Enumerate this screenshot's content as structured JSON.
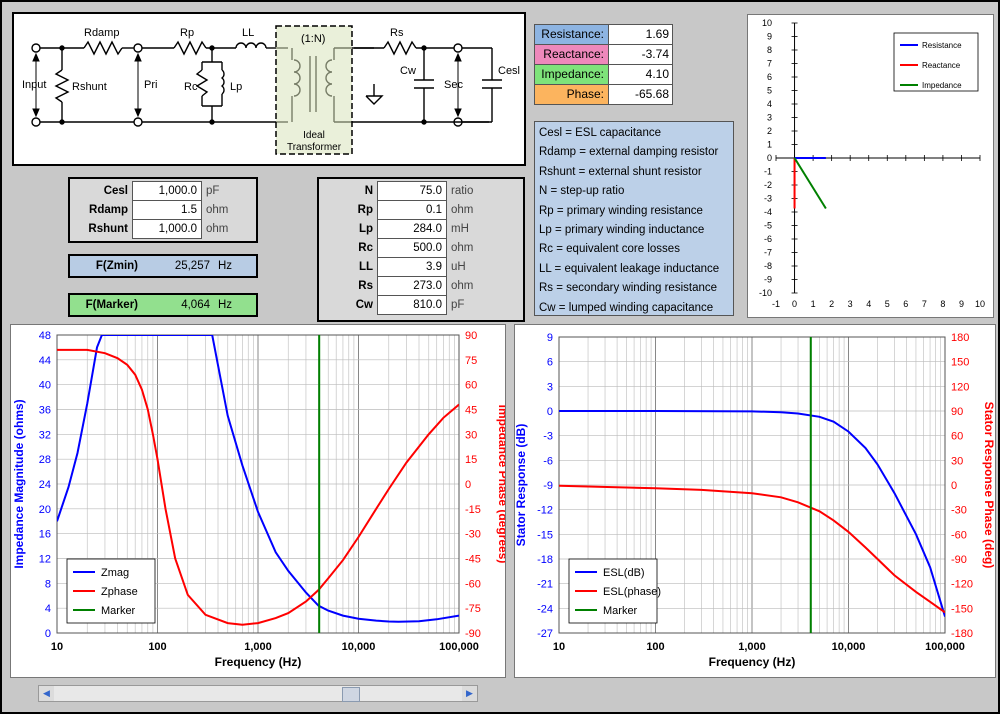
{
  "schematic": {
    "labels": {
      "rdamp": "Rdamp",
      "rp": "Rp",
      "ll": "LL",
      "ratio": "(1:N)",
      "rs": "Rs",
      "input": "Input",
      "rshunt": "Rshunt",
      "pri": "Pri",
      "rc": "Rc",
      "lp": "Lp",
      "cw": "Cw",
      "sec": "Sec",
      "cesl": "Cesl",
      "ideal1": "Ideal",
      "ideal2": "Transformer"
    }
  },
  "inputs_left": [
    {
      "label": "Cesl",
      "value": "1,000.0",
      "unit": "pF"
    },
    {
      "label": "Rdamp",
      "value": "1.5",
      "unit": "ohm"
    },
    {
      "label": "Rshunt",
      "value": "1,000.0",
      "unit": "ohm"
    }
  ],
  "inputs_right": [
    {
      "label": "N",
      "value": "75.0",
      "unit": "ratio"
    },
    {
      "label": "Rp",
      "value": "0.1",
      "unit": "ohm"
    },
    {
      "label": "Lp",
      "value": "284.0",
      "unit": "mH"
    },
    {
      "label": "Rc",
      "value": "500.0",
      "unit": "ohm"
    },
    {
      "label": "LL",
      "value": "3.9",
      "unit": "uH"
    },
    {
      "label": "Rs",
      "value": "273.0",
      "unit": "ohm"
    },
    {
      "label": "Cw",
      "value": "810.0",
      "unit": "pF"
    }
  ],
  "fzmin": {
    "label": "F(Zmin)",
    "value": "25,257",
    "unit": "Hz",
    "color": "#b8cce4"
  },
  "fmarker": {
    "label": "F(Marker)",
    "value": "4,064",
    "unit": "Hz",
    "color": "#92e08e"
  },
  "results": [
    {
      "label": "Resistance:",
      "value": "1.69",
      "color": "#8db4e2"
    },
    {
      "label": "Reactance:",
      "value": "-3.74",
      "color": "#ee88bb"
    },
    {
      "label": "Impedance:",
      "value": "4.10",
      "color": "#7ee37a"
    },
    {
      "label": "Phase:",
      "value": "-65.68",
      "color": "#fcb45e"
    }
  ],
  "definitions": [
    "Cesl = ESL capacitance",
    "Rdamp = external damping resistor",
    "Rshunt = external shunt resistor",
    "N = step-up ratio",
    "Rp = primary winding resistance",
    "Lp = primary winding inductance",
    "Rc = equivalent core losses",
    "LL = equivalent leakage inductance",
    "Rs = secondary winding resistance",
    "Cw = lumped winding capacitance"
  ],
  "chart_data": [
    {
      "type": "line",
      "title": "",
      "xlabel": "",
      "ylabel": "",
      "xlim": [
        -1,
        10
      ],
      "ylim": [
        -10,
        10
      ],
      "legend_position": "top-right",
      "series": [
        {
          "name": "Resistance",
          "color": "#0000ff",
          "x": [
            0,
            1.69
          ],
          "y": [
            0,
            0
          ]
        },
        {
          "name": "Reactance",
          "color": "#ff0000",
          "x": [
            0,
            0
          ],
          "y": [
            0,
            -3.74
          ]
        },
        {
          "name": "Impedance",
          "color": "#008000",
          "x": [
            0,
            1.69
          ],
          "y": [
            0,
            -3.74
          ]
        }
      ],
      "grid": true
    },
    {
      "type": "line",
      "title": "",
      "xlabel": "Frequency (Hz)",
      "ylabel": "Impedance Magnitude (ohms)",
      "y2label": "Impedance Phase (degrees)",
      "xscale": "log",
      "xlim": [
        10,
        100000
      ],
      "ylim": [
        0,
        48
      ],
      "y2lim": [
        -90,
        90
      ],
      "x_ticks": [
        "10",
        "100",
        "1,000",
        "10,000",
        "100,000"
      ],
      "y_ticks": [
        "0",
        "4",
        "8",
        "12",
        "16",
        "20",
        "24",
        "28",
        "32",
        "36",
        "40",
        "44",
        "48"
      ],
      "y2_ticks": [
        "-90",
        "-75",
        "-60",
        "-45",
        "-30",
        "-15",
        "0",
        "15",
        "30",
        "45",
        "60",
        "75",
        "90"
      ],
      "legend_position": "bottom-left",
      "series": [
        {
          "name": "Zmag",
          "color": "#0000ff",
          "axis": "left",
          "x": [
            10,
            13,
            16,
            20,
            25,
            28,
            350,
            500,
            700,
            1000,
            1500,
            2000,
            3000,
            4000,
            5000,
            7000,
            10000,
            15000,
            20000,
            25000,
            40000,
            60000,
            100000
          ],
          "y": [
            18,
            23.5,
            29,
            37,
            46,
            48,
            48,
            35,
            27,
            19.5,
            13,
            10,
            6.5,
            4.4,
            3.6,
            2.8,
            2.3,
            2.0,
            1.85,
            1.8,
            1.9,
            2.2,
            2.8
          ]
        },
        {
          "name": "Zphase",
          "color": "#ff0000",
          "axis": "right",
          "x": [
            10,
            20,
            30,
            40,
            50,
            60,
            70,
            80,
            90,
            100,
            120,
            150,
            200,
            300,
            500,
            700,
            1000,
            1500,
            2000,
            3000,
            4000,
            5000,
            7000,
            10000,
            15000,
            20000,
            30000,
            50000,
            70000,
            100000
          ],
          "y": [
            81,
            81,
            79,
            76,
            72,
            66,
            57,
            45,
            30,
            15,
            -15,
            -45,
            -67,
            -79,
            -84,
            -85,
            -84,
            -81,
            -78,
            -71,
            -64,
            -57,
            -46,
            -32,
            -15,
            -3,
            13,
            30,
            40,
            48
          ]
        },
        {
          "name": "Marker",
          "color": "#008000",
          "axis": "left",
          "x": [
            4064,
            4064
          ],
          "y": [
            0,
            48
          ]
        }
      ],
      "grid": true
    },
    {
      "type": "line",
      "title": "",
      "xlabel": "Frequency (Hz)",
      "ylabel": "Stator Response (dB)",
      "y2label": "Stator Response Phase (deg)",
      "xscale": "log",
      "xlim": [
        10,
        100000
      ],
      "ylim": [
        -27,
        9
      ],
      "y2lim": [
        -180,
        180
      ],
      "x_ticks": [
        "10",
        "100",
        "1,000",
        "10,000",
        "100,000"
      ],
      "y_ticks": [
        "-27",
        "-24",
        "-21",
        "-18",
        "-15",
        "-12",
        "-9",
        "-6",
        "-3",
        "0",
        "3",
        "6",
        "9"
      ],
      "y2_ticks": [
        "-180",
        "-150",
        "-120",
        "-90",
        "-60",
        "-30",
        "0",
        "30",
        "60",
        "90",
        "120",
        "150",
        "180"
      ],
      "legend_position": "bottom-left",
      "series": [
        {
          "name": "ESL(dB)",
          "color": "#0000ff",
          "axis": "left",
          "x": [
            10,
            100,
            1000,
            2000,
            3000,
            5000,
            7000,
            10000,
            15000,
            20000,
            30000,
            50000,
            70000,
            100000
          ],
          "y": [
            0,
            0,
            -0.05,
            -0.15,
            -0.3,
            -0.7,
            -1.3,
            -2.5,
            -4.5,
            -6.5,
            -10,
            -15,
            -19,
            -25
          ]
        },
        {
          "name": "ESL(phase)",
          "color": "#ff0000",
          "axis": "right",
          "x": [
            10,
            100,
            300,
            1000,
            2000,
            3000,
            5000,
            7000,
            10000,
            15000,
            20000,
            30000,
            50000,
            70000,
            100000
          ],
          "y": [
            -1,
            -4,
            -6,
            -10,
            -15,
            -21,
            -32,
            -43,
            -57,
            -76,
            -90,
            -110,
            -130,
            -142,
            -155
          ]
        },
        {
          "name": "Marker",
          "color": "#008000",
          "axis": "left",
          "x": [
            4064,
            4064
          ],
          "y": [
            -27,
            9
          ]
        }
      ],
      "grid": true
    }
  ]
}
